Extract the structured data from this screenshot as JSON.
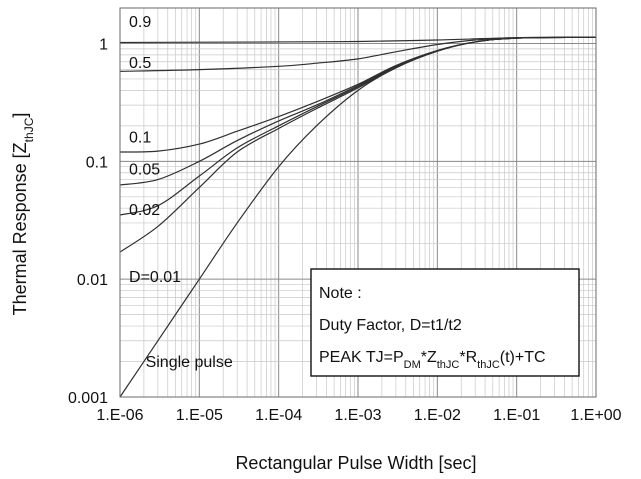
{
  "chart_data": {
    "type": "line",
    "xscale": "log",
    "yscale": "log",
    "xlim": [
      1e-06,
      1
    ],
    "ylim": [
      0.001,
      2
    ],
    "grid": true,
    "xlabel": "Rectangular Pulse Width [sec]",
    "ylabel": {
      "main": "Thermal Response [Z",
      "sub": "thJC",
      "close": "]"
    },
    "x_ticks": [
      {
        "value": 1e-06,
        "label": "1.E-06"
      },
      {
        "value": 1e-05,
        "label": "1.E-05"
      },
      {
        "value": 0.0001,
        "label": "1.E-04"
      },
      {
        "value": 0.001,
        "label": "1.E-03"
      },
      {
        "value": 0.01,
        "label": "1.E-02"
      },
      {
        "value": 0.1,
        "label": "1.E-01"
      },
      {
        "value": 1,
        "label": "1.E+00"
      }
    ],
    "y_ticks": [
      {
        "value": 0.001,
        "label": "0.001"
      },
      {
        "value": 0.01,
        "label": "0.01"
      },
      {
        "value": 0.1,
        "label": "0.1"
      },
      {
        "value": 1,
        "label": "1"
      }
    ],
    "series": [
      {
        "name": "0.9",
        "label_at": [
          1.3e-06,
          1.38
        ],
        "x": [
          1e-06,
          0.0001,
          0.001,
          0.01,
          0.1,
          1
        ],
        "y": [
          1.02,
          1.03,
          1.04,
          1.07,
          1.12,
          1.13
        ]
      },
      {
        "name": "0.5",
        "label_at": [
          1.3e-06,
          0.62
        ],
        "x": [
          1e-06,
          1e-05,
          0.0001,
          0.0003,
          0.001,
          0.003,
          0.01,
          0.03,
          0.1,
          1
        ],
        "y": [
          0.58,
          0.6,
          0.64,
          0.68,
          0.74,
          0.85,
          0.98,
          1.07,
          1.12,
          1.13
        ]
      },
      {
        "name": "0.1",
        "label_at": [
          1.3e-06,
          0.145
        ],
        "x": [
          1e-06,
          3e-06,
          1e-05,
          3e-05,
          0.0001,
          0.0003,
          0.001,
          0.003,
          0.01,
          0.03,
          0.1,
          1
        ],
        "y": [
          0.12,
          0.122,
          0.14,
          0.18,
          0.24,
          0.32,
          0.45,
          0.65,
          0.87,
          1.03,
          1.11,
          1.13
        ]
      },
      {
        "name": "0.05",
        "label_at": [
          1.3e-06,
          0.077
        ],
        "x": [
          1e-06,
          3e-06,
          1e-05,
          3e-05,
          0.0001,
          0.0003,
          0.001,
          0.003,
          0.01,
          0.03,
          0.1,
          1
        ],
        "y": [
          0.063,
          0.07,
          0.1,
          0.15,
          0.22,
          0.3,
          0.44,
          0.64,
          0.87,
          1.03,
          1.11,
          1.13
        ]
      },
      {
        "name": "0.02",
        "label_at": [
          1.3e-06,
          0.035
        ],
        "x": [
          1e-06,
          3e-06,
          1e-05,
          3e-05,
          0.0001,
          0.0003,
          0.001,
          0.003,
          0.01,
          0.03,
          0.1,
          1
        ],
        "y": [
          0.035,
          0.042,
          0.075,
          0.13,
          0.2,
          0.29,
          0.43,
          0.64,
          0.87,
          1.03,
          1.11,
          1.13
        ]
      },
      {
        "name": "D=0.01",
        "label_at": [
          1.3e-06,
          0.0095
        ],
        "x": [
          1e-06,
          3e-06,
          1e-05,
          3e-05,
          0.0001,
          0.0003,
          0.001,
          0.003,
          0.01,
          0.03,
          0.1,
          1
        ],
        "y": [
          0.017,
          0.028,
          0.06,
          0.12,
          0.19,
          0.28,
          0.42,
          0.63,
          0.86,
          1.03,
          1.11,
          1.13
        ]
      },
      {
        "name": "Single pulse",
        "label_at": [
          2.1e-06,
          0.0018
        ],
        "x": [
          1e-06,
          3e-06,
          1e-05,
          3e-05,
          0.0001,
          0.0003,
          0.001,
          0.003,
          0.01,
          0.03,
          0.1,
          1
        ],
        "y": [
          0.001,
          0.003,
          0.01,
          0.03,
          0.09,
          0.2,
          0.4,
          0.62,
          0.86,
          1.03,
          1.11,
          1.13
        ]
      }
    ],
    "annotation": {
      "lines": [
        {
          "text": "Note :"
        },
        {
          "text": "Duty Factor, D=t1/t2"
        },
        {
          "parts": [
            {
              "t": "PEAK TJ=P"
            },
            {
              "t": "DM",
              "sub": true
            },
            {
              "t": "*Z"
            },
            {
              "t": "thJC",
              "sub": true
            },
            {
              "t": "*R"
            },
            {
              "t": "thJC",
              "sub": true
            },
            {
              "t": "(t)+TC"
            }
          ]
        }
      ]
    }
  }
}
